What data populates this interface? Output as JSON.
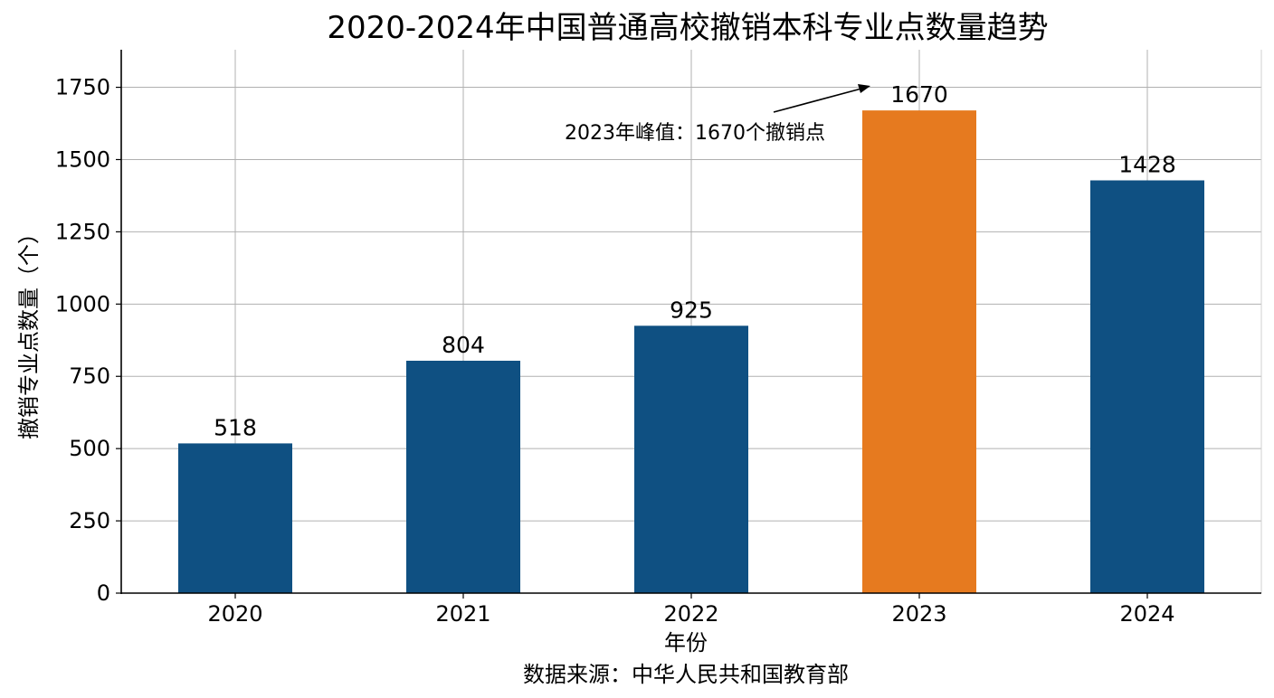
{
  "chart_data": {
    "type": "bar",
    "title": "2020-2024年中国普通高校撤销本科专业点数量趋势",
    "xlabel": "年份",
    "ylabel": "撤销专业点数量（个）",
    "source": "数据来源：中华人民共和国教育部",
    "categories": [
      "2020",
      "2021",
      "2022",
      "2023",
      "2024"
    ],
    "values": [
      518,
      804,
      925,
      1670,
      1428
    ],
    "data_labels": [
      "518",
      "804",
      "925",
      "1670",
      "1428"
    ],
    "ylim": [
      0,
      1880
    ],
    "yticks": [
      0,
      250,
      500,
      750,
      1000,
      1250,
      1500,
      1750
    ],
    "ytick_labels": [
      "0",
      "250",
      "500",
      "750",
      "1000",
      "1250",
      "1500",
      "1750"
    ],
    "grid": true,
    "colors": {
      "default": "#0f5082",
      "highlight": "#e67a1f"
    },
    "highlight_index": 3,
    "annotation": {
      "text": "2023年峰值：1670个撤销点",
      "points_to": {
        "x": "2023",
        "y": 1670
      }
    }
  }
}
